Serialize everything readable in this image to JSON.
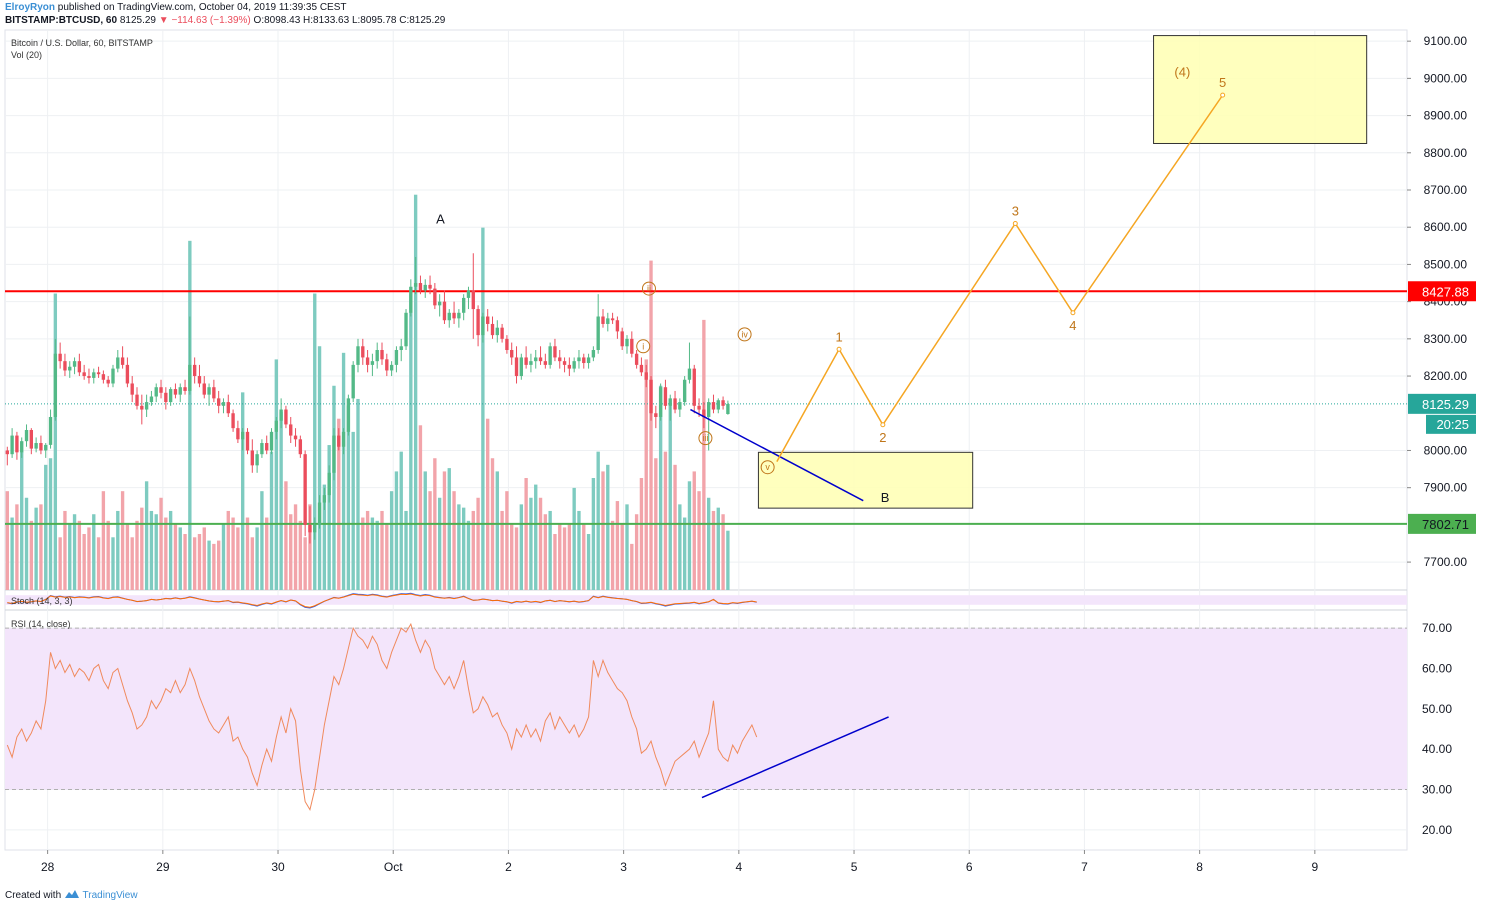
{
  "header": {
    "author": "ElroyRyon",
    "published": "published on TradingView.com, October 04, 2019 11:39:35 CEST",
    "symbol": "BITSTAMP:BTCUSD, 60",
    "last": "8125.29",
    "change": "▼ −114.63 (−1.39%)",
    "ohlc": "O:8098.43 H:8133.63 L:8095.78 C:8125.29"
  },
  "legend": {
    "title": "Bitcoin / U.S. Dollar, 60, BITSTAMP",
    "volume": "Vol (20)",
    "stoch": "Stoch (14, 3, 3)",
    "rsi": "RSI (14, close)"
  },
  "footer": {
    "created_with": "Created with",
    "brand": "TradingView"
  },
  "colors": {
    "up": "#53b987",
    "down": "#eb4d5c",
    "vol_up": "#7ecbc0",
    "vol_down": "#f2a4aa",
    "resistance": "#ff0000",
    "support": "#4caf50",
    "projection": "#f5a623",
    "trendline": "#0000cc",
    "zone_fill": "#ffffb3",
    "zone_stroke": "#333333",
    "rsi_line": "#f08a5d",
    "rsi_band": "#f3e5fb",
    "wave_label": "#c0761a"
  },
  "chart_data": {
    "type": "candlestick",
    "title": "Bitcoin / U.S. Dollar, 60, BITSTAMP",
    "x_axis": {
      "labels": [
        {
          "label": "28",
          "day": 0
        },
        {
          "label": "29",
          "day": 1
        },
        {
          "label": "30",
          "day": 2
        },
        {
          "label": "Oct",
          "day": 3
        },
        {
          "label": "2",
          "day": 4
        },
        {
          "label": "3",
          "day": 5
        },
        {
          "label": "4",
          "day": 6
        },
        {
          "label": "5",
          "day": 7
        },
        {
          "label": "6",
          "day": 8
        },
        {
          "label": "7",
          "day": 9
        },
        {
          "label": "8",
          "day": 10
        },
        {
          "label": "9",
          "day": 11
        }
      ],
      "range_days": [
        -0.37,
        11.8
      ]
    },
    "price_axis": {
      "ticks": [
        "9100.00",
        "9000.00",
        "8900.00",
        "8800.00",
        "8700.00",
        "8600.00",
        "8500.00",
        "8400.00",
        "8300.00",
        "8200.00",
        "8000.00",
        "7900.00",
        "7700.00"
      ],
      "range": [
        7625,
        9130
      ]
    },
    "last_price": "8125.29",
    "countdown": "20:25",
    "horizontal_lines": [
      {
        "name": "resistance",
        "value": 8427.88,
        "label": "8427.88",
        "color": "#ff0000"
      },
      {
        "name": "support",
        "value": 7802.71,
        "label": "7802.71",
        "color": "#4caf50"
      }
    ],
    "candles_ohlc_start_day": -0.35,
    "candles_interval_days": 0.0417,
    "candles": [
      [
        8000,
        8010,
        7960,
        7990
      ],
      [
        7990,
        8060,
        7980,
        8040
      ],
      [
        8040,
        8050,
        7975,
        7995
      ],
      [
        7995,
        8035,
        7980,
        8025
      ],
      [
        8025,
        8070,
        8010,
        8055
      ],
      [
        8055,
        8060,
        7990,
        8005
      ],
      [
        8005,
        8035,
        7995,
        8020
      ],
      [
        8020,
        8040,
        7990,
        8000
      ],
      [
        8000,
        8020,
        7980,
        8015
      ],
      [
        8015,
        8110,
        8005,
        8090
      ],
      [
        8090,
        8300,
        8080,
        8260
      ],
      [
        8260,
        8290,
        8220,
        8240
      ],
      [
        8240,
        8260,
        8200,
        8215
      ],
      [
        8215,
        8240,
        8195,
        8225
      ],
      [
        8225,
        8250,
        8205,
        8240
      ],
      [
        8240,
        8260,
        8200,
        8210
      ],
      [
        8210,
        8230,
        8190,
        8200
      ],
      [
        8200,
        8220,
        8180,
        8195
      ],
      [
        8195,
        8220,
        8180,
        8210
      ],
      [
        8210,
        8225,
        8195,
        8205
      ],
      [
        8205,
        8215,
        8180,
        8190
      ],
      [
        8190,
        8200,
        8170,
        8180
      ],
      [
        8180,
        8230,
        8170,
        8220
      ],
      [
        8220,
        8270,
        8210,
        8250
      ],
      [
        8250,
        8280,
        8220,
        8230
      ],
      [
        8230,
        8250,
        8170,
        8180
      ],
      [
        8180,
        8200,
        8130,
        8150
      ],
      [
        8150,
        8170,
        8110,
        8120
      ],
      [
        8120,
        8150,
        8070,
        8110
      ],
      [
        8110,
        8150,
        8090,
        8130
      ],
      [
        8130,
        8160,
        8120,
        8145
      ],
      [
        8145,
        8180,
        8130,
        8170
      ],
      [
        8170,
        8190,
        8140,
        8155
      ],
      [
        8155,
        8170,
        8110,
        8130
      ],
      [
        8130,
        8170,
        8120,
        8165
      ],
      [
        8165,
        8180,
        8140,
        8150
      ],
      [
        8150,
        8180,
        8130,
        8170
      ],
      [
        8170,
        8190,
        8150,
        8160
      ],
      [
        8160,
        8360,
        8150,
        8230
      ],
      [
        8230,
        8250,
        8180,
        8200
      ],
      [
        8200,
        8230,
        8170,
        8180
      ],
      [
        8180,
        8200,
        8140,
        8150
      ],
      [
        8150,
        8180,
        8120,
        8170
      ],
      [
        8170,
        8190,
        8130,
        8140
      ],
      [
        8140,
        8160,
        8100,
        8120
      ],
      [
        8120,
        8140,
        8100,
        8130
      ],
      [
        8130,
        8150,
        8090,
        8100
      ],
      [
        8100,
        8110,
        8050,
        8060
      ],
      [
        8060,
        8080,
        8020,
        8030
      ],
      [
        8030,
        8060,
        8000,
        8050
      ],
      [
        8050,
        8060,
        7990,
        8000
      ],
      [
        8000,
        8030,
        7940,
        7960
      ],
      [
        7960,
        8000,
        7940,
        7990
      ],
      [
        7990,
        8030,
        7980,
        8020
      ],
      [
        8020,
        8040,
        7990,
        8000
      ],
      [
        8000,
        8060,
        7990,
        8050
      ],
      [
        8050,
        8090,
        8030,
        8080
      ],
      [
        8080,
        8140,
        8060,
        8110
      ],
      [
        8110,
        8120,
        8060,
        8070
      ],
      [
        8070,
        8090,
        8020,
        8040
      ],
      [
        8040,
        8060,
        8010,
        8030
      ],
      [
        8030,
        8040,
        7980,
        7990
      ],
      [
        7990,
        8000,
        7770,
        7800
      ],
      [
        7800,
        7850,
        7750,
        7780
      ],
      [
        7780,
        7820,
        7760,
        7800
      ],
      [
        7800,
        7880,
        7790,
        7860
      ],
      [
        7860,
        7900,
        7840,
        7880
      ],
      [
        7880,
        7960,
        7860,
        7940
      ],
      [
        7940,
        8060,
        7920,
        8040
      ],
      [
        8040,
        8060,
        8000,
        8010
      ],
      [
        8010,
        8060,
        7990,
        8050
      ],
      [
        8050,
        8150,
        8040,
        8140
      ],
      [
        8140,
        8240,
        8130,
        8230
      ],
      [
        8230,
        8300,
        8210,
        8280
      ],
      [
        8280,
        8300,
        8230,
        8250
      ],
      [
        8250,
        8270,
        8210,
        8230
      ],
      [
        8230,
        8260,
        8200,
        8240
      ],
      [
        8240,
        8290,
        8220,
        8270
      ],
      [
        8270,
        8290,
        8230,
        8245
      ],
      [
        8245,
        8260,
        8200,
        8215
      ],
      [
        8215,
        8240,
        8200,
        8230
      ],
      [
        8230,
        8280,
        8210,
        8270
      ],
      [
        8270,
        8300,
        8240,
        8280
      ],
      [
        8280,
        8380,
        8270,
        8370
      ],
      [
        8370,
        8460,
        8360,
        8440
      ],
      [
        8440,
        8520,
        8420,
        8450
      ],
      [
        8450,
        8470,
        8420,
        8430
      ],
      [
        8430,
        8460,
        8410,
        8445
      ],
      [
        8445,
        8470,
        8420,
        8435
      ],
      [
        8435,
        8450,
        8380,
        8390
      ],
      [
        8390,
        8420,
        8360,
        8400
      ],
      [
        8400,
        8430,
        8340,
        8350
      ],
      [
        8350,
        8380,
        8330,
        8370
      ],
      [
        8370,
        8400,
        8340,
        8355
      ],
      [
        8355,
        8380,
        8330,
        8370
      ],
      [
        8370,
        8420,
        8350,
        8410
      ],
      [
        8410,
        8440,
        8380,
        8430
      ],
      [
        8430,
        8530,
        8300,
        8380
      ],
      [
        8380,
        8390,
        8280,
        8310
      ],
      [
        8310,
        8370,
        8290,
        8360
      ],
      [
        8360,
        8380,
        8320,
        8340
      ],
      [
        8340,
        8360,
        8300,
        8310
      ],
      [
        8310,
        8350,
        8290,
        8330
      ],
      [
        8330,
        8340,
        8290,
        8300
      ],
      [
        8300,
        8310,
        8260,
        8270
      ],
      [
        8270,
        8290,
        8230,
        8250
      ],
      [
        8250,
        8280,
        8180,
        8200
      ],
      [
        8200,
        8260,
        8190,
        8250
      ],
      [
        8250,
        8280,
        8220,
        8230
      ],
      [
        8230,
        8260,
        8210,
        8240
      ],
      [
        8240,
        8270,
        8220,
        8250
      ],
      [
        8250,
        8280,
        8230,
        8240
      ],
      [
        8240,
        8260,
        8220,
        8230
      ],
      [
        8230,
        8290,
        8220,
        8280
      ],
      [
        8280,
        8300,
        8240,
        8250
      ],
      [
        8250,
        8270,
        8220,
        8240
      ],
      [
        8240,
        8250,
        8210,
        8230
      ],
      [
        8230,
        8250,
        8200,
        8220
      ],
      [
        8220,
        8250,
        8210,
        8240
      ],
      [
        8240,
        8270,
        8220,
        8250
      ],
      [
        8250,
        8260,
        8220,
        8235
      ],
      [
        8235,
        8260,
        8220,
        8250
      ],
      [
        8250,
        8280,
        8240,
        8270
      ],
      [
        8270,
        8420,
        8260,
        8360
      ],
      [
        8360,
        8380,
        8330,
        8340
      ],
      [
        8340,
        8370,
        8320,
        8355
      ],
      [
        8355,
        8370,
        8340,
        8350
      ],
      [
        8350,
        8360,
        8300,
        8320
      ],
      [
        8320,
        8330,
        8270,
        8280
      ],
      [
        8280,
        8310,
        8260,
        8300
      ],
      [
        8300,
        8320,
        8250,
        8260
      ],
      [
        8260,
        8270,
        8220,
        8230
      ],
      [
        8230,
        8250,
        8200,
        8210
      ],
      [
        8210,
        8230,
        8170,
        8190
      ],
      [
        8190,
        8200,
        8080,
        8100
      ],
      [
        8100,
        8120,
        8060,
        8090
      ],
      [
        8090,
        8180,
        8080,
        8170
      ],
      [
        8170,
        8190,
        8110,
        8120
      ],
      [
        8120,
        8150,
        8080,
        8140
      ],
      [
        8140,
        8160,
        8100,
        8110
      ],
      [
        8110,
        8140,
        8090,
        8130
      ],
      [
        8130,
        8200,
        8120,
        8190
      ],
      [
        8190,
        8290,
        8180,
        8220
      ],
      [
        8220,
        8230,
        8100,
        8120
      ],
      [
        8120,
        8140,
        8090,
        8110
      ],
      [
        8110,
        8130,
        8060,
        8090
      ],
      [
        8090,
        8140,
        8000,
        8130
      ],
      [
        8130,
        8150,
        8100,
        8110
      ],
      [
        8110,
        8140,
        8100,
        8135
      ],
      [
        8135,
        8145,
        8110,
        8120
      ],
      [
        8098,
        8134,
        8096,
        8125
      ]
    ],
    "volume_range": [
      0,
      1700
    ],
    "volume": [
      300,
      220,
      260,
      420,
      280,
      210,
      250,
      260,
      380,
      400,
      900,
      160,
      240,
      200,
      230,
      210,
      170,
      190,
      230,
      160,
      300,
      210,
      160,
      240,
      300,
      200,
      160,
      210,
      250,
      330,
      240,
      230,
      280,
      220,
      240,
      200,
      190,
      170,
      1060,
      160,
      170,
      190,
      150,
      140,
      150,
      200,
      240,
      220,
      190,
      600,
      220,
      160,
      190,
      300,
      220,
      420,
      700,
      540,
      330,
      230,
      260,
      210,
      160,
      260,
      900,
      740,
      320,
      440,
      620,
      520,
      720,
      560,
      480,
      580,
      220,
      240,
      220,
      210,
      240,
      200,
      300,
      360,
      420,
      240,
      900,
      1200,
      500,
      360,
      300,
      400,
      280,
      360,
      370,
      300,
      260,
      250,
      210,
      240,
      280,
      1100,
      520,
      400,
      360,
      240,
      300,
      200,
      190,
      260,
      340,
      280,
      320,
      280,
      230,
      240,
      170,
      200,
      190,
      200,
      310,
      240,
      200,
      170,
      340,
      420,
      360,
      380,
      210,
      270,
      200,
      260,
      140,
      230,
      340,
      700,
      1000,
      400,
      620,
      420,
      560,
      380,
      260,
      220,
      330,
      360,
      300,
      820,
      280,
      240,
      250,
      230,
      180
    ],
    "stochastic": {
      "name": "Stoch (14, 3, 3)",
      "range": [
        0,
        100
      ],
      "bands": [
        80,
        20
      ]
    },
    "rsi": {
      "name": "RSI (14, close)",
      "range": [
        15,
        74
      ],
      "ticks": [
        "70.00",
        "60.00",
        "50.00",
        "40.00",
        "30.00",
        "20.00"
      ],
      "bands": [
        70,
        30
      ],
      "values": [
        41,
        38,
        43,
        45,
        42,
        44,
        47,
        45,
        52,
        64,
        60,
        62,
        59,
        61,
        58,
        60,
        59,
        57,
        60,
        61,
        57,
        55,
        59,
        60,
        56,
        52,
        49,
        45,
        46,
        48,
        52,
        50,
        52,
        55,
        54,
        57,
        54,
        56,
        60,
        57,
        53,
        50,
        47,
        45,
        44,
        46,
        48,
        42,
        43,
        40,
        38,
        34,
        31,
        36,
        40,
        37,
        43,
        48,
        44,
        50,
        47,
        35,
        27,
        25,
        30,
        38,
        46,
        52,
        58,
        56,
        60,
        65,
        70,
        68,
        67,
        65,
        68,
        66,
        62,
        60,
        64,
        67,
        70,
        69,
        71,
        67,
        64,
        67,
        65,
        60,
        58,
        56,
        58,
        55,
        58,
        62,
        55,
        49,
        50,
        53,
        51,
        48,
        49,
        46,
        44,
        40,
        45,
        43,
        46,
        43,
        45,
        42,
        47,
        49,
        45,
        48,
        46,
        44,
        46,
        43,
        45,
        48,
        62,
        58,
        62,
        59,
        57,
        55,
        54,
        52,
        48,
        45,
        39,
        40,
        42,
        38,
        35,
        31,
        34,
        37,
        38,
        39,
        40,
        42,
        38,
        41,
        44,
        52,
        40,
        38,
        37,
        41,
        39,
        42,
        44,
        46,
        43
      ]
    },
    "projection_wave": [
      {
        "label": "1",
        "day": 6.87,
        "price": 8272
      },
      {
        "label": "2",
        "day": 7.25,
        "price": 8069
      },
      {
        "label": "3",
        "day": 8.4,
        "price": 8610
      },
      {
        "label": "4",
        "day": 8.9,
        "price": 8370
      },
      {
        "label": "5",
        "day": 10.2,
        "price": 8955
      }
    ],
    "projection_start": {
      "day": 6.33,
      "price": 7970
    },
    "subwave_labels": [
      {
        "label": "i",
        "day": 5.17,
        "price": 8280
      },
      {
        "label": "ii",
        "day": 5.22,
        "price": 8435
      },
      {
        "label": "iii",
        "day": 5.71,
        "price": 8033
      },
      {
        "label": "iv",
        "day": 6.05,
        "price": 8312
      },
      {
        "label": "v",
        "day": 6.25,
        "price": 7955
      }
    ],
    "annotations": [
      {
        "label": "A",
        "day": 3.41,
        "price": 8610
      },
      {
        "label": "B",
        "day": 7.27,
        "price": 7862
      },
      {
        "label": "(4)",
        "day": 9.85,
        "price": 9005
      }
    ],
    "zones": [
      {
        "name": "target-zone",
        "day_start": 9.6,
        "day_end": 11.45,
        "price_top": 9115,
        "price_bottom": 8825
      },
      {
        "name": "b-zone",
        "day_start": 6.17,
        "day_end": 8.03,
        "price_top": 7995,
        "price_bottom": 7845
      }
    ],
    "trendlines": [
      {
        "name": "price-trendline",
        "pane": "price",
        "start": {
          "day": 5.58,
          "price": 8110
        },
        "end": {
          "day": 7.08,
          "price": 7865
        }
      },
      {
        "name": "rsi-trendline",
        "pane": "rsi",
        "start": {
          "day": 5.68,
          "value": 28
        },
        "end": {
          "day": 7.3,
          "value": 48
        }
      }
    ]
  }
}
